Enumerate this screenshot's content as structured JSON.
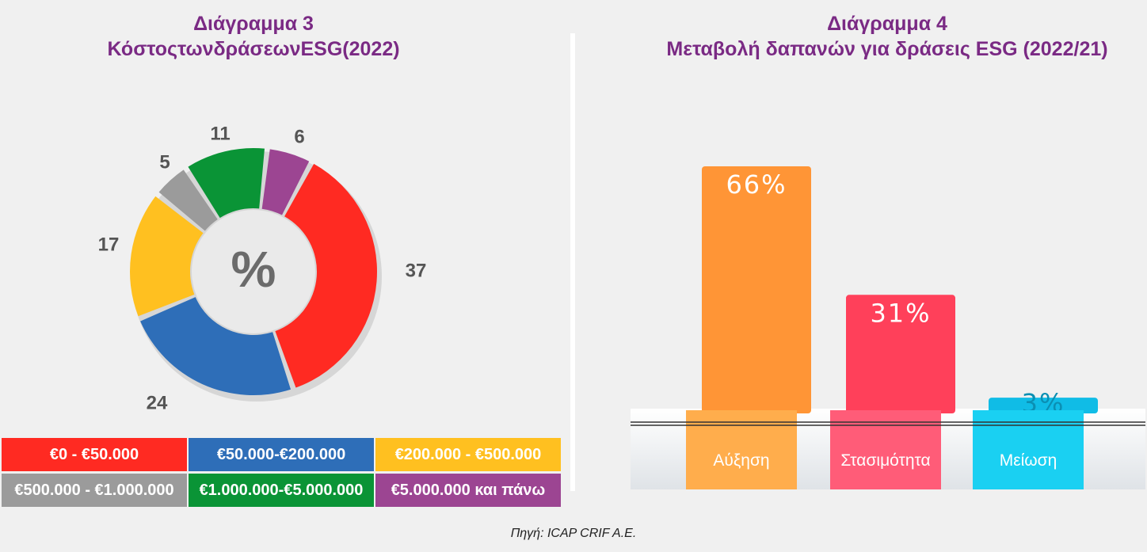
{
  "left_panel": {
    "title_line1": "Διάγραμμα 3",
    "title_line2": "ΚόστοςτωνδράσεωνESG(2022)",
    "center_label": "%",
    "legend": [
      {
        "label": "€0 - €50.000",
        "color": "#ff2a22"
      },
      {
        "label": "€50.000-€200.000",
        "color": "#2e6eb8"
      },
      {
        "label": "€200.000 - €500.000",
        "color": "#ffc020"
      },
      {
        "label": "€500.000 - €1.000.000",
        "color": "#9b9b9b"
      },
      {
        "label": "€1.000.000-€5.000.000",
        "color": "#0a9436"
      },
      {
        "label": "€5.000.000 και πάνω",
        "color": "#9c4592"
      }
    ]
  },
  "right_panel": {
    "title_line1": "Διάγραμμα 4",
    "title_line2": "Μεταβολή δαπανών για δράσεις ESG (2022/21)"
  },
  "source": "Πηγή: ICAP CRIF A.E.",
  "chart_data": [
    {
      "type": "pie",
      "title": "Διάγραμμα 3 ΚόστοςτωνδράσεωνESG(2022)",
      "categories": [
        "€0 - €50.000",
        "€50.000-€200.000",
        "€200.000 - €500.000",
        "€500.000 - €1.000.000",
        "€1.000.000-€5.000.000",
        "€5.000.000 και πάνω"
      ],
      "values": [
        37,
        24,
        17,
        5,
        11,
        6
      ],
      "value_labels": [
        "37",
        "24",
        "17",
        "5",
        "11",
        "6"
      ],
      "colors": [
        "#ff2a22",
        "#2e6eb8",
        "#ffc020",
        "#9b9b9b",
        "#0a9436",
        "#9c4592"
      ],
      "legend_position": "bottom"
    },
    {
      "type": "bar",
      "title": "Διάγραμμα 4 Μεταβολή δαπανών για δράσεις ESG (2022/21)",
      "categories": [
        "Αύξηση",
        "Στασιμότητα",
        "Μείωση"
      ],
      "values": [
        66,
        31,
        3
      ],
      "value_labels": [
        "66%",
        "31%",
        "3%"
      ],
      "colors": [
        "#ff9536",
        "#ff405a",
        "#10bce6"
      ],
      "label_colors": [
        "#ffad4c",
        "#ff5c78",
        "#1ad0f2"
      ],
      "ylim": [
        0,
        70
      ],
      "grid": false
    }
  ]
}
